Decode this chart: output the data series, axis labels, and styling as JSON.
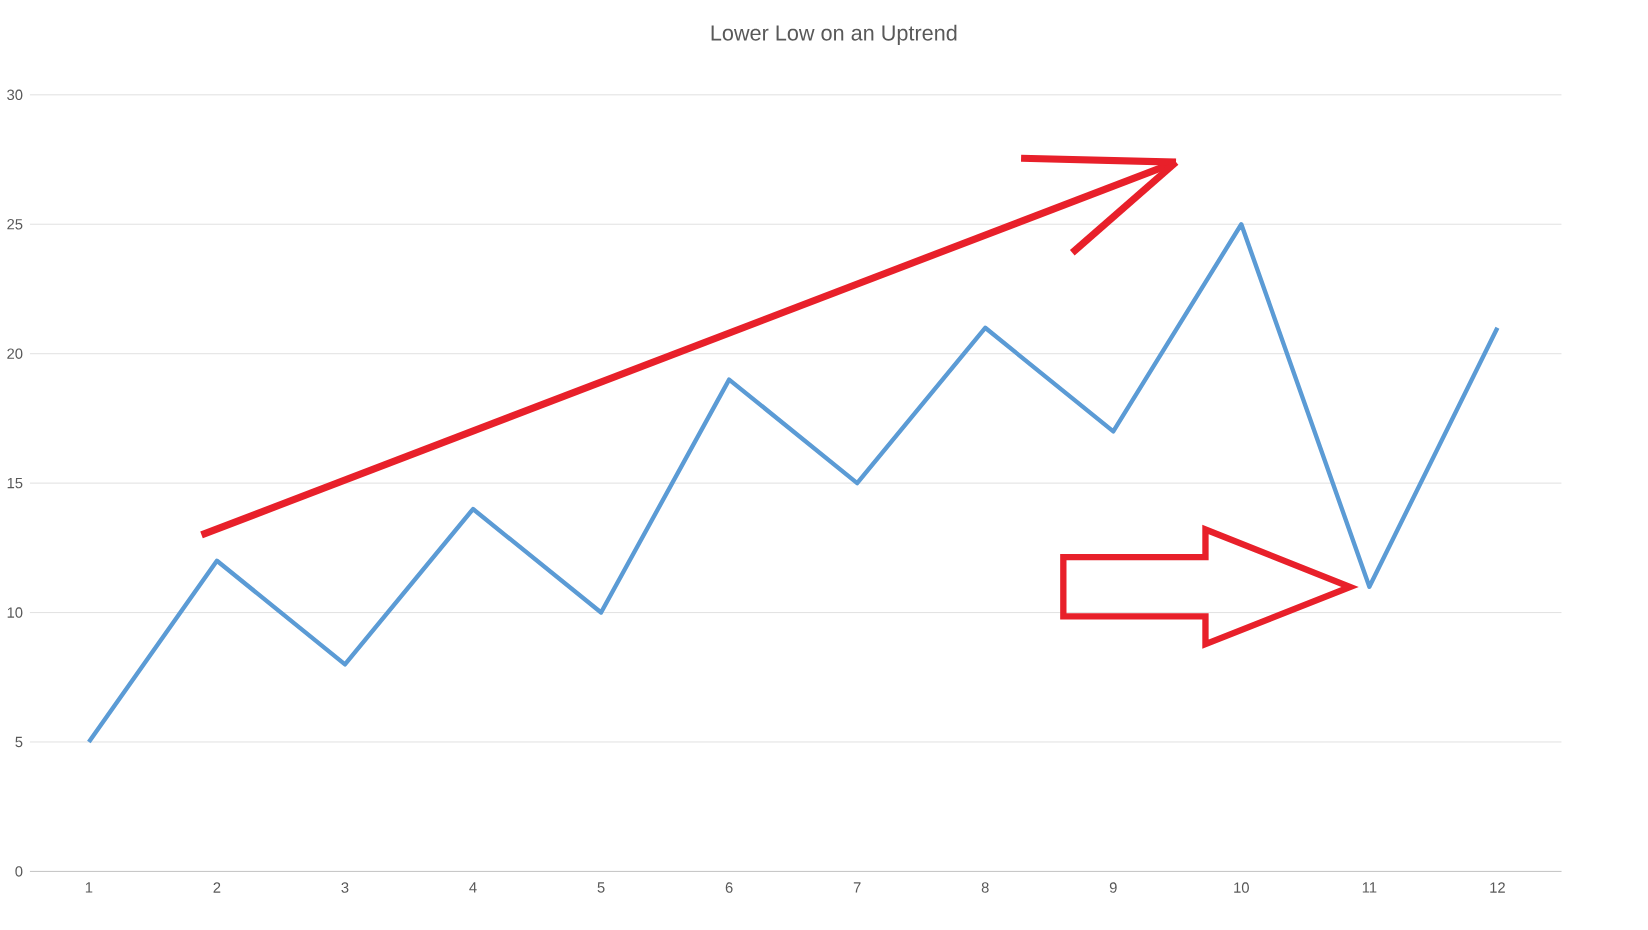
{
  "chart_data": {
    "type": "line",
    "title": "Lower Low on an Uptrend",
    "categories": [
      "1",
      "2",
      "3",
      "4",
      "5",
      "6",
      "7",
      "8",
      "9",
      "10",
      "11",
      "12"
    ],
    "values": [
      5,
      12,
      8,
      14,
      10,
      19,
      15,
      21,
      17,
      25,
      11,
      21
    ],
    "color": "#5b9bd5",
    "ylim": [
      0,
      30
    ],
    "yticks": [
      0,
      5,
      10,
      15,
      20,
      25,
      30
    ],
    "grid": "y"
  }
}
